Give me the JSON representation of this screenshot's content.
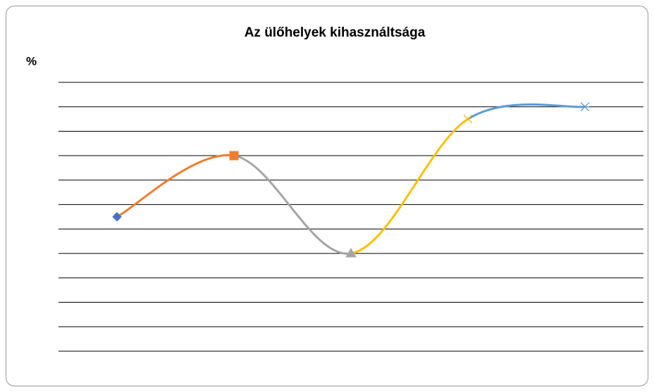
{
  "chart_data": {
    "type": "line",
    "title": "Az ülőhelyek kihasználtsága",
    "y_label": "%",
    "categories": [
      null,
      null,
      null,
      null,
      null
    ],
    "values": [
      5.5,
      8,
      4,
      9.5,
      10
    ],
    "point_colors": [
      "#4472c4",
      "#ed7d31",
      "#a5a5a5",
      "#ffc000",
      "#5b9bd5"
    ],
    "markers": [
      "diamond",
      "square",
      "triangle",
      "x",
      "star"
    ],
    "smooth": true,
    "ylim": [
      0,
      11
    ],
    "yticks": [
      0,
      1,
      2,
      3,
      4,
      5,
      6,
      7,
      8,
      9,
      10,
      11
    ],
    "grid": true
  }
}
